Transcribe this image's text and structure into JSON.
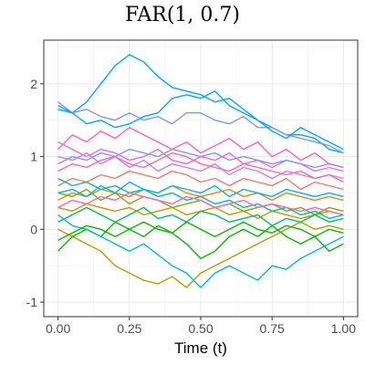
{
  "chart_data": {
    "type": "line",
    "title": "FAR(1, 0.7)",
    "xlabel": "Time (t)",
    "ylabel": "",
    "xlim": [
      -0.05,
      1.05
    ],
    "ylim": [
      -1.2,
      2.6
    ],
    "xticks": [
      0.0,
      0.25,
      0.5,
      0.75,
      1.0
    ],
    "xtick_labels": [
      "0.00",
      "0.25",
      "0.50",
      "0.75",
      "1.00"
    ],
    "yticks": [
      -1,
      0,
      1,
      2
    ],
    "ytick_labels": [
      "-1",
      "0",
      "1",
      "2"
    ],
    "grid": true,
    "legend": "none",
    "x": [
      0.0,
      0.05,
      0.1,
      0.15,
      0.2,
      0.25,
      0.3,
      0.35,
      0.4,
      0.45,
      0.5,
      0.55,
      0.6,
      0.65,
      0.7,
      0.75,
      0.8,
      0.85,
      0.9,
      0.95,
      1.0
    ],
    "series": [
      {
        "color": "#00a9ff",
        "values": [
          1.65,
          1.6,
          1.75,
          2.0,
          2.25,
          2.4,
          2.3,
          2.1,
          1.95,
          1.9,
          1.85,
          1.75,
          1.8,
          1.65,
          1.5,
          1.4,
          1.3,
          1.3,
          1.25,
          1.1,
          1.05
        ]
      },
      {
        "color": "#8494ff",
        "values": [
          1.75,
          1.6,
          1.65,
          1.55,
          1.5,
          1.6,
          1.5,
          1.55,
          1.45,
          1.6,
          1.6,
          1.5,
          1.45,
          1.55,
          1.4,
          1.4,
          1.3,
          1.25,
          1.2,
          1.15,
          1.05
        ]
      },
      {
        "color": "#00a9ff",
        "values": [
          1.7,
          1.6,
          1.45,
          1.5,
          1.4,
          1.45,
          1.55,
          1.6,
          1.8,
          1.85,
          1.8,
          1.9,
          1.7,
          1.6,
          1.5,
          1.35,
          1.25,
          1.4,
          1.3,
          1.2,
          1.1
        ]
      },
      {
        "color": "#ff61c3",
        "values": [
          1.1,
          1.3,
          1.2,
          1.35,
          1.25,
          1.4,
          1.3,
          1.2,
          1.1,
          1.2,
          1.05,
          1.15,
          1.25,
          1.1,
          1.2,
          1.0,
          1.1,
          0.95,
          1.05,
          0.9,
          0.85
        ]
      },
      {
        "color": "#ed68ed",
        "values": [
          1.2,
          1.1,
          1.0,
          1.1,
          1.05,
          0.95,
          1.0,
          1.1,
          0.95,
          0.9,
          1.0,
          0.95,
          1.05,
          0.9,
          0.95,
          0.85,
          0.95,
          0.9,
          0.8,
          0.85,
          0.8
        ]
      },
      {
        "color": "#c77cff",
        "values": [
          1.0,
          0.95,
          1.05,
          0.9,
          1.0,
          0.85,
          0.95,
          0.8,
          0.9,
          0.85,
          0.8,
          0.9,
          0.75,
          0.85,
          0.8,
          0.7,
          0.8,
          0.75,
          0.7,
          0.75,
          0.7
        ]
      },
      {
        "color": "#ff6c91",
        "values": [
          0.8,
          0.9,
          0.85,
          0.95,
          1.0,
          0.9,
          0.85,
          0.95,
          1.05,
          1.0,
          0.9,
          0.85,
          0.8,
          0.9,
          0.85,
          0.8,
          0.75,
          0.8,
          0.7,
          0.75,
          0.65
        ]
      },
      {
        "color": "#f8766d",
        "values": [
          0.6,
          0.7,
          0.65,
          0.75,
          0.7,
          0.8,
          0.75,
          0.7,
          0.8,
          0.75,
          0.65,
          0.7,
          0.6,
          0.7,
          0.65,
          0.6,
          0.7,
          0.55,
          0.65,
          0.6,
          0.55
        ]
      },
      {
        "color": "#e68613",
        "values": [
          0.4,
          0.5,
          0.45,
          0.55,
          0.5,
          0.45,
          0.55,
          0.5,
          0.6,
          0.5,
          0.45,
          0.5,
          0.55,
          0.45,
          0.5,
          0.4,
          0.5,
          0.45,
          0.4,
          0.45,
          0.4
        ]
      },
      {
        "color": "#cd9600",
        "values": [
          0.3,
          0.25,
          0.35,
          0.3,
          0.25,
          0.3,
          0.2,
          0.25,
          0.3,
          0.2,
          0.25,
          0.3,
          0.2,
          0.25,
          0.15,
          0.25,
          0.2,
          0.15,
          0.2,
          0.25,
          0.2
        ]
      },
      {
        "color": "#7cae00",
        "values": [
          0.5,
          0.45,
          0.55,
          0.4,
          0.5,
          0.35,
          0.45,
          0.4,
          0.3,
          0.35,
          0.4,
          0.3,
          0.35,
          0.25,
          0.3,
          0.35,
          0.25,
          0.3,
          0.2,
          0.3,
          0.25
        ]
      },
      {
        "color": "#aba300",
        "values": [
          0.0,
          -0.1,
          -0.2,
          -0.3,
          -0.5,
          -0.6,
          -0.7,
          -0.75,
          -0.65,
          -0.8,
          -0.6,
          -0.5,
          -0.4,
          -0.3,
          -0.2,
          -0.1,
          0.0,
          0.1,
          0.0,
          0.05,
          0.0
        ]
      },
      {
        "color": "#0cb702",
        "values": [
          -0.3,
          -0.1,
          0.0,
          -0.1,
          0.1,
          0.0,
          -0.1,
          0.05,
          -0.05,
          -0.2,
          -0.4,
          -0.3,
          -0.1,
          0.0,
          -0.1,
          0.05,
          -0.1,
          -0.2,
          -0.1,
          -0.3,
          -0.2
        ]
      },
      {
        "color": "#00be67",
        "values": [
          0.1,
          0.2,
          0.3,
          0.2,
          0.1,
          0.2,
          0.3,
          0.15,
          0.2,
          0.1,
          0.25,
          0.2,
          0.1,
          0.15,
          0.2,
          0.05,
          0.15,
          0.1,
          0.2,
          0.1,
          0.15
        ]
      },
      {
        "color": "#00c19a",
        "values": [
          0.7,
          0.6,
          0.65,
          0.55,
          0.6,
          0.5,
          0.55,
          0.45,
          0.5,
          0.4,
          0.45,
          0.35,
          0.4,
          0.3,
          0.35,
          0.25,
          0.3,
          0.2,
          0.25,
          0.15,
          0.2
        ]
      },
      {
        "color": "#00bfc4",
        "values": [
          0.2,
          0.05,
          0.0,
          -0.1,
          -0.2,
          -0.3,
          -0.2,
          -0.35,
          -0.5,
          -0.6,
          -0.8,
          -0.6,
          -0.5,
          -0.6,
          -0.7,
          -0.5,
          -0.55,
          -0.4,
          -0.3,
          -0.2,
          -0.1
        ]
      },
      {
        "color": "#00b8e7",
        "values": [
          0.5,
          0.55,
          0.45,
          0.6,
          0.5,
          0.65,
          0.55,
          0.5,
          0.6,
          0.55,
          0.5,
          0.6,
          0.45,
          0.55,
          0.5,
          0.45,
          0.55,
          0.5,
          0.45,
          0.5,
          0.45
        ]
      },
      {
        "color": "#8494ff",
        "values": [
          0.9,
          1.0,
          0.95,
          1.05,
          1.0,
          1.1,
          1.05,
          1.0,
          1.1,
          1.05,
          1.0,
          1.05,
          0.95,
          1.0,
          0.95,
          0.9,
          0.95,
          0.9,
          0.85,
          0.9,
          0.85
        ]
      },
      {
        "color": "#ff61c3",
        "values": [
          0.3,
          0.4,
          0.35,
          0.45,
          0.4,
          0.5,
          0.45,
          0.4,
          0.35,
          0.45,
          0.4,
          0.3,
          0.35,
          0.4,
          0.3,
          0.35,
          0.3,
          0.25,
          0.3,
          0.25,
          0.2
        ]
      },
      {
        "color": "#0cb702",
        "values": [
          -0.15,
          -0.05,
          0.05,
          0.0,
          -0.1,
          0.0,
          0.1,
          0.0,
          -0.05,
          0.1,
          0.0,
          -0.1,
          0.0,
          0.1,
          0.0,
          -0.05,
          0.05,
          0.0,
          -0.1,
          0.0,
          -0.05
        ]
      }
    ]
  }
}
